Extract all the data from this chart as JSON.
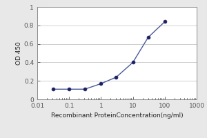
{
  "x": [
    0.031,
    0.1,
    0.31,
    1.0,
    3.0,
    10.0,
    30.0,
    100.0
  ],
  "y": [
    0.11,
    0.11,
    0.11,
    0.17,
    0.24,
    0.4,
    0.67,
    0.84
  ],
  "line_color": "#4a5a9a",
  "marker_color": "#1a2060",
  "marker_size": 3.5,
  "line_width": 1.0,
  "xlabel": "Recombinant ProteinConcentration(ng/ml)",
  "ylabel": "OD 450",
  "xlim": [
    0.01,
    1000
  ],
  "ylim": [
    0,
    1
  ],
  "yticks": [
    0,
    0.2,
    0.4,
    0.6,
    0.8,
    1
  ],
  "ytick_labels": [
    "0",
    "0.2",
    "0.4",
    "0.6",
    "0.8",
    "1"
  ],
  "xticks": [
    0.01,
    0.1,
    1,
    10,
    100,
    1000
  ],
  "xtick_labels": [
    "0.01",
    "0.1",
    "1",
    "10",
    "100",
    "1000"
  ],
  "grid_color": "#c8c8c8",
  "bg_color": "#ffffff",
  "fig_bg_color": "#e8e8e8",
  "xlabel_fontsize": 6.5,
  "ylabel_fontsize": 6.5,
  "tick_fontsize": 6.5
}
